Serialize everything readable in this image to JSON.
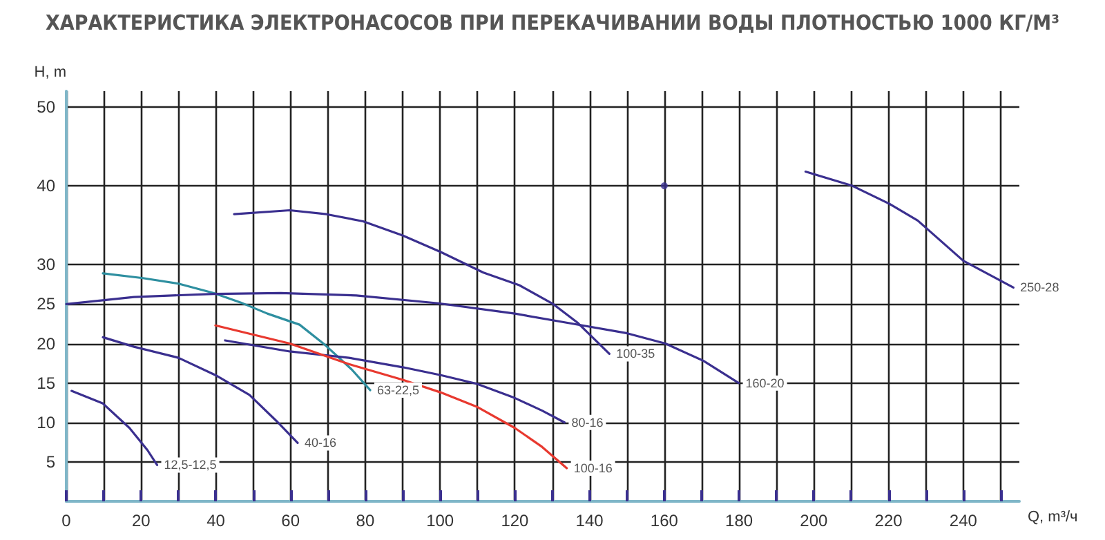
{
  "chart_data": {
    "type": "line",
    "title": "ХАРАКТЕРИСТИКА ЭЛЕКТРОНАСОСОВ ПРИ ПЕРЕКАЧИВАНИИ ВОДЫ ПЛОТНОСТЬЮ 1000 КГ/М³",
    "xlabel": "Q, m³/ч",
    "ylabel": "H, m",
    "xlim": [
      0,
      255
    ],
    "xticks": [
      0,
      {
        "value": 10,
        "label": null
      },
      20,
      {
        "value": 30,
        "label": null
      },
      40,
      {
        "value": 50,
        "label": null
      },
      60,
      {
        "value": 70,
        "label": null
      },
      80,
      {
        "value": 90,
        "label": null
      },
      100,
      {
        "value": 110,
        "label": null
      },
      120,
      {
        "value": 130,
        "label": null
      },
      140,
      {
        "value": 150,
        "label": null
      },
      160,
      {
        "value": 170,
        "label": null
      },
      180,
      {
        "value": 190,
        "label": null
      },
      200,
      {
        "value": 210,
        "label": null
      },
      220,
      {
        "value": 230,
        "label": null
      },
      240,
      {
        "value": 250,
        "label": null
      }
    ],
    "ylim": [
      0,
      52
    ],
    "yticks": [
      5,
      10,
      15,
      20,
      25,
      30,
      40,
      50
    ],
    "grid": true,
    "legend": false,
    "line_style": "solid",
    "series": [
      {
        "name": "12,5-12,5",
        "color": "#3a2f8f",
        "x": [
          1.4,
          9.8,
          16.9,
          21.7,
          24.3
        ],
        "values": [
          14,
          12.4,
          9.3,
          6.5,
          4.6
        ]
      },
      {
        "name": "40-16",
        "color": "#3a2f8f",
        "x": [
          9.8,
          18.1,
          30,
          39.9,
          49,
          56.2,
          61.9
        ],
        "values": [
          20.8,
          19.6,
          18.2,
          16,
          13.5,
          10.2,
          7.4
        ]
      },
      {
        "name": "63-22,5",
        "color": "#2e8fa0",
        "x": [
          9.8,
          20.5,
          30,
          39.5,
          46.7,
          53.8,
          62.4,
          69.3,
          76.4,
          81.3
        ],
        "values": [
          28.9,
          28.3,
          27.6,
          26.4,
          25.2,
          23.8,
          22.4,
          19.8,
          16.7,
          14.1
        ]
      },
      {
        "name": "160-20",
        "color": "#3a2f8f",
        "x": [
          0,
          18.1,
          39.5,
          57.4,
          77.6,
          99.6,
          120,
          135.7,
          150.1,
          160.3,
          170.5,
          179.9
        ],
        "values": [
          25,
          25.9,
          26.3,
          26.4,
          26.1,
          25.1,
          23.8,
          22.5,
          21.3,
          20,
          17.8,
          15
        ]
      },
      {
        "name": "100-35",
        "color": "#3a2f8f",
        "x": [
          44.9,
          59.8,
          69.6,
          79.4,
          90,
          100.2,
          111.6,
          121.2,
          130.3,
          136.9,
          145.3
        ],
        "values": [
          36.4,
          36.9,
          36.4,
          35.5,
          33.7,
          31.6,
          29,
          27.4,
          25,
          22.6,
          18.7
        ]
      },
      {
        "name": "80-16",
        "color": "#3a2f8f",
        "x": [
          42.5,
          59.8,
          75.6,
          90,
          100.2,
          109.8,
          120,
          127.3,
          133.3
        ],
        "values": [
          20.4,
          19,
          18.2,
          17,
          16,
          14.9,
          13.1,
          11.5,
          10
        ]
      },
      {
        "name": "100-16",
        "color": "#e8392f",
        "x": [
          39.9,
          59.8,
          75.6,
          90,
          100.2,
          109.8,
          120,
          127.3,
          133.9
        ],
        "values": [
          22.3,
          20,
          17.4,
          15.4,
          13.8,
          12,
          9.3,
          6.9,
          4.2
        ]
      },
      {
        "name": "250-28",
        "color": "#3a2f8f",
        "x": [
          197.8,
          210.3,
          220.3,
          227.8,
          240,
          253.4
        ],
        "values": [
          41.8,
          40,
          37.7,
          35.6,
          30.5,
          27.1
        ]
      },
      {
        "type": "scatter",
        "marker": "circle",
        "color": "#3a2f8f",
        "x": [
          160
        ],
        "values": [
          40
        ]
      }
    ]
  }
}
